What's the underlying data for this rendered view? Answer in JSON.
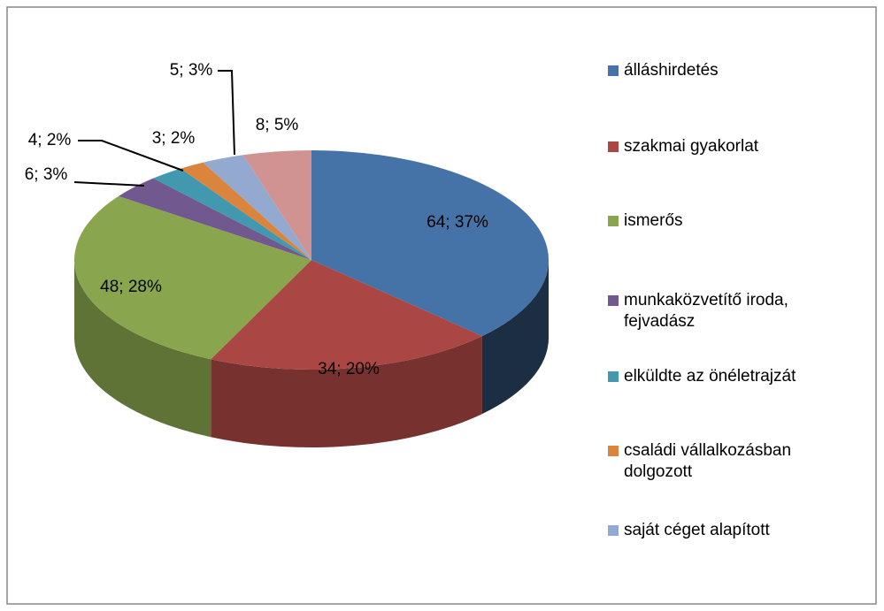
{
  "chart_data": {
    "type": "pie",
    "categories": [
      "álláshirdetés",
      "szakmai gyakorlat",
      "ismerős",
      "munkaközvetítő iroda, fejvadász",
      "elküldte az önéletrajzát",
      "családi vállalkozásban dolgozott",
      "saját céget alapított",
      null
    ],
    "values": [
      64,
      34,
      48,
      6,
      4,
      3,
      5,
      8
    ],
    "value_labels": [
      "64; 37%",
      "34; 20%",
      "48; 28%",
      "6; 3%",
      "4; 2%",
      "3; 2%",
      "5; 3%",
      "8; 5%"
    ],
    "colors": [
      "#4572a7",
      "#aa4643",
      "#89a54e",
      "#71588f",
      "#4198af",
      "#db843d",
      "#93a9cf",
      "#d19392"
    ],
    "legend": "right"
  }
}
